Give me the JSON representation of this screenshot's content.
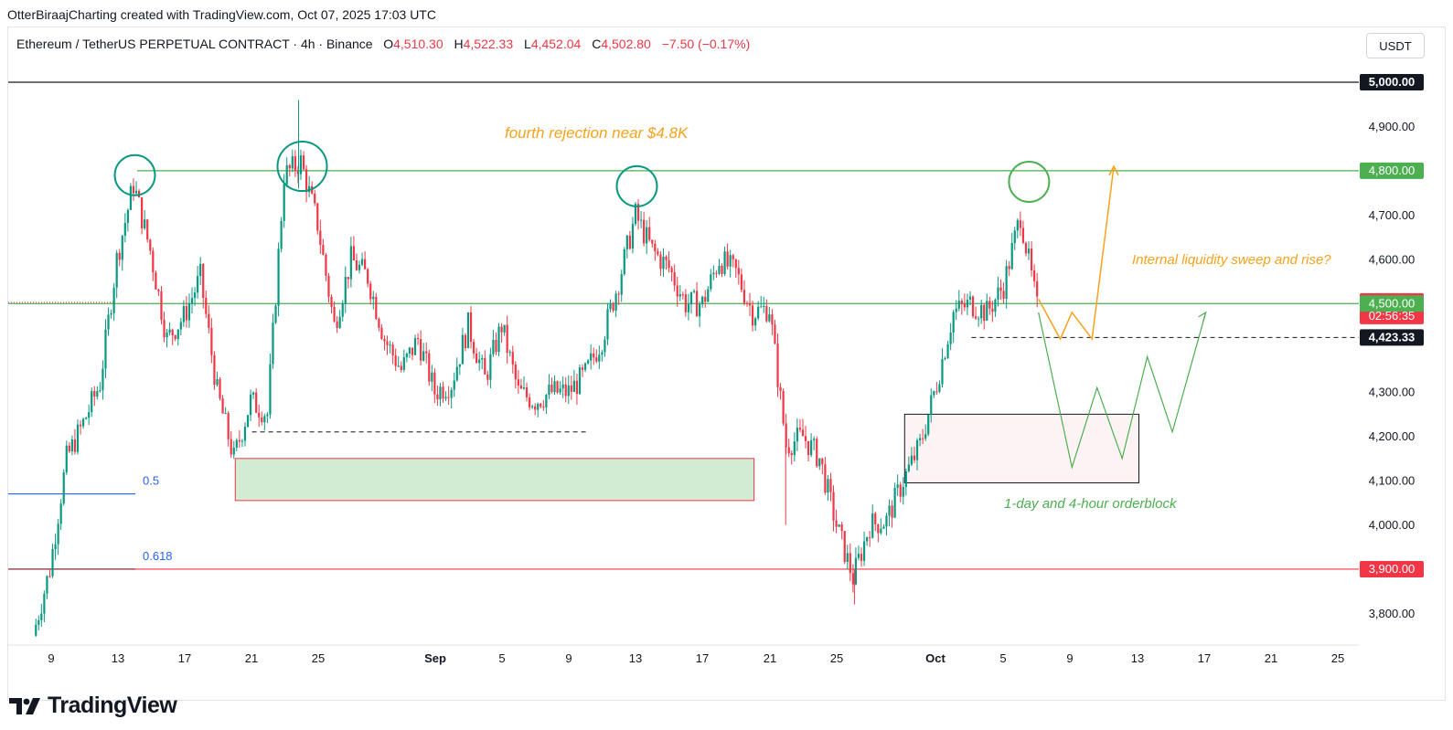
{
  "byline": "OtterBiraajCharting created with TradingView.com, Oct 07, 2025 17:03 UTC",
  "header": {
    "symbol": "Ethereum / TetherUS PERPETUAL CONTRACT · 4h · Binance",
    "o_label": "O",
    "o_value": "4,510.30",
    "h_label": "H",
    "h_value": "4,522.33",
    "l_label": "L",
    "l_value": "4,452.04",
    "c_label": "C",
    "c_value": "4,502.80",
    "change": "−7.50 (−0.17%)"
  },
  "unit_button": "USDT",
  "brand": "TradingView",
  "colors": {
    "up": "#089981",
    "down": "#f23645",
    "support_green": "#4caf50",
    "annotation_orange": "#f7a21b",
    "fib_blue": "#2962ff",
    "red_level": "#f23645"
  },
  "chart_data": {
    "type": "candlestick",
    "symbol": "Ethereum / TetherUS PERPETUAL CONTRACT",
    "interval": "4h",
    "exchange": "Binance",
    "ylim": [
      3740,
      5050
    ],
    "y_ticks": [
      "3,800.00",
      "4,000.00",
      "4,100.00",
      "4,200.00",
      "4,300.00",
      "4,600.00",
      "4,700.00",
      "4,900.00"
    ],
    "x_ticks": [
      "9",
      "13",
      "17",
      "21",
      "25",
      "Sep",
      "5",
      "9",
      "13",
      "17",
      "21",
      "25",
      "Oct",
      "5",
      "9",
      "13",
      "17",
      "21",
      "25"
    ],
    "price_path": [
      [
        "Aug 8",
        3750
      ],
      [
        "Aug 9",
        3900
      ],
      [
        "Aug 10",
        4150
      ],
      [
        "Aug 11",
        4230
      ],
      [
        "Aug 12",
        4320
      ],
      [
        "Aug 13",
        4600
      ],
      [
        "Aug 14",
        4770
      ],
      [
        "Aug 15",
        4620
      ],
      [
        "Aug 16",
        4420
      ],
      [
        "Aug 17",
        4470
      ],
      [
        "Aug 18",
        4560
      ],
      [
        "Aug 19",
        4300
      ],
      [
        "Aug 20",
        4150
      ],
      [
        "Aug 21",
        4280
      ],
      [
        "Aug 22",
        4250
      ],
      [
        "Aug 23",
        4790
      ],
      [
        "Aug 24",
        4820
      ],
      [
        "Aug 25",
        4680
      ],
      [
        "Aug 26",
        4450
      ],
      [
        "Aug 27",
        4600
      ],
      [
        "Aug 28",
        4560
      ],
      [
        "Aug 29",
        4420
      ],
      [
        "Aug 30",
        4350
      ],
      [
        "Aug 31",
        4420
      ],
      [
        "Sep 1",
        4300
      ],
      [
        "Sep 2",
        4320
      ],
      [
        "Sep 3",
        4450
      ],
      [
        "Sep 4",
        4330
      ],
      [
        "Sep 5",
        4450
      ],
      [
        "Sep 6",
        4300
      ],
      [
        "Sep 7",
        4280
      ],
      [
        "Sep 8",
        4300
      ],
      [
        "Sep 9",
        4300
      ],
      [
        "Sep 10",
        4340
      ],
      [
        "Sep 11",
        4420
      ],
      [
        "Sep 12",
        4550
      ],
      [
        "Sep 13",
        4700
      ],
      [
        "Sep 14",
        4620
      ],
      [
        "Sep 15",
        4580
      ],
      [
        "Sep 16",
        4500
      ],
      [
        "Sep 17",
        4500
      ],
      [
        "Sep 18",
        4600
      ],
      [
        "Sep 19",
        4570
      ],
      [
        "Sep 20",
        4480
      ],
      [
        "Sep 21",
        4490
      ],
      [
        "Sep 22",
        4180
      ],
      [
        "Sep 23",
        4200
      ],
      [
        "Sep 24",
        4150
      ],
      [
        "Sep 25",
        4000
      ],
      [
        "Sep 26",
        3880
      ],
      [
        "Sep 27",
        4000
      ],
      [
        "Sep 28",
        4010
      ],
      [
        "Sep 29",
        4100
      ],
      [
        "Sep 30",
        4180
      ],
      [
        "Oct 1",
        4320
      ],
      [
        "Oct 2",
        4480
      ],
      [
        "Oct 3",
        4500
      ],
      [
        "Oct 4",
        4480
      ],
      [
        "Oct 5",
        4540
      ],
      [
        "Oct 6",
        4700
      ],
      [
        "Oct 7",
        4490
      ]
    ],
    "price_labels": [
      {
        "label": "5,000.00",
        "value": 5000,
        "style": "dark"
      },
      {
        "label": "4,800.00",
        "value": 4800,
        "style": "green"
      },
      {
        "label": "4,502.80",
        "value": 4502.8,
        "style": "red",
        "sub": "02:56:35"
      },
      {
        "label": "4,500.00",
        "value": 4500,
        "style": "green"
      },
      {
        "label": "4,423.33",
        "value": 4423.33,
        "style": "dark"
      },
      {
        "label": "3,900.00",
        "value": 3900,
        "style": "red"
      }
    ],
    "horizontal_lines": [
      {
        "value": 5000,
        "color": "#131722"
      },
      {
        "value": 4800,
        "color": "#4caf50"
      },
      {
        "value": 4500,
        "color": "#4caf50"
      },
      {
        "value": 3900,
        "color": "#f23645"
      }
    ],
    "fib_levels": [
      {
        "label": "0.5",
        "value": 4070
      },
      {
        "label": "0.618",
        "value": 3900
      }
    ],
    "zones": [
      {
        "from": "Aug 20",
        "to": "Sep 20",
        "low": 4055,
        "high": 4150,
        "style": "green"
      },
      {
        "from": "Sep 29",
        "to": "Oct 13",
        "low": 4095,
        "high": 4250,
        "style": "pink"
      }
    ],
    "annotations": [
      "fourth rejection near $4.8K",
      "Internal liquidity sweep and rise?",
      "1-day and 4-hour orderblock"
    ]
  }
}
